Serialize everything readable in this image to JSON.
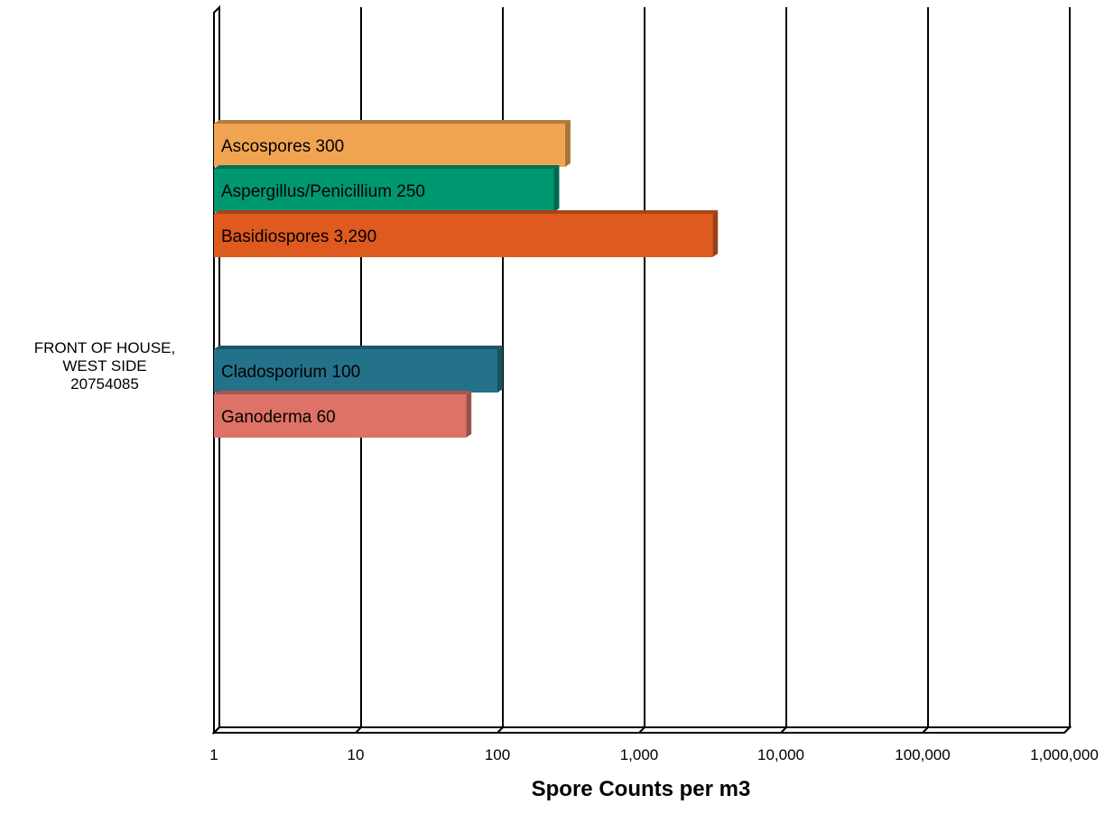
{
  "chart_data": {
    "type": "bar",
    "orientation": "horizontal",
    "x_scale": "log",
    "xlim": [
      1,
      1000000
    ],
    "xlabel": "Spore Counts per m3",
    "ylabel": "",
    "grid": true,
    "legend": "none",
    "x_ticks": [
      "1",
      "10",
      "100",
      "1,000",
      "10,000",
      "100,000",
      "1,000,000"
    ],
    "category_label_lines": [
      "FRONT OF HOUSE,",
      "WEST SIDE",
      "20754085"
    ],
    "bars": [
      {
        "name": "Ascospores",
        "value": 300,
        "label": "Ascospores 300",
        "color": "#F0A452"
      },
      {
        "name": "Aspergillus/Penicillium",
        "value": 250,
        "label": "Aspergillus/Penicillium 250",
        "color": "#009870"
      },
      {
        "name": "Basidiospores",
        "value": 3290,
        "label": "Basidiospores 3,290",
        "color": "#DE5A1F"
      },
      {
        "name": "Cladosporium",
        "value": 100,
        "label": "Cladosporium 100",
        "color": "#24718A"
      },
      {
        "name": "Ganoderma",
        "value": 60,
        "label": "Ganoderma 60",
        "color": "#DE7266"
      }
    ]
  }
}
